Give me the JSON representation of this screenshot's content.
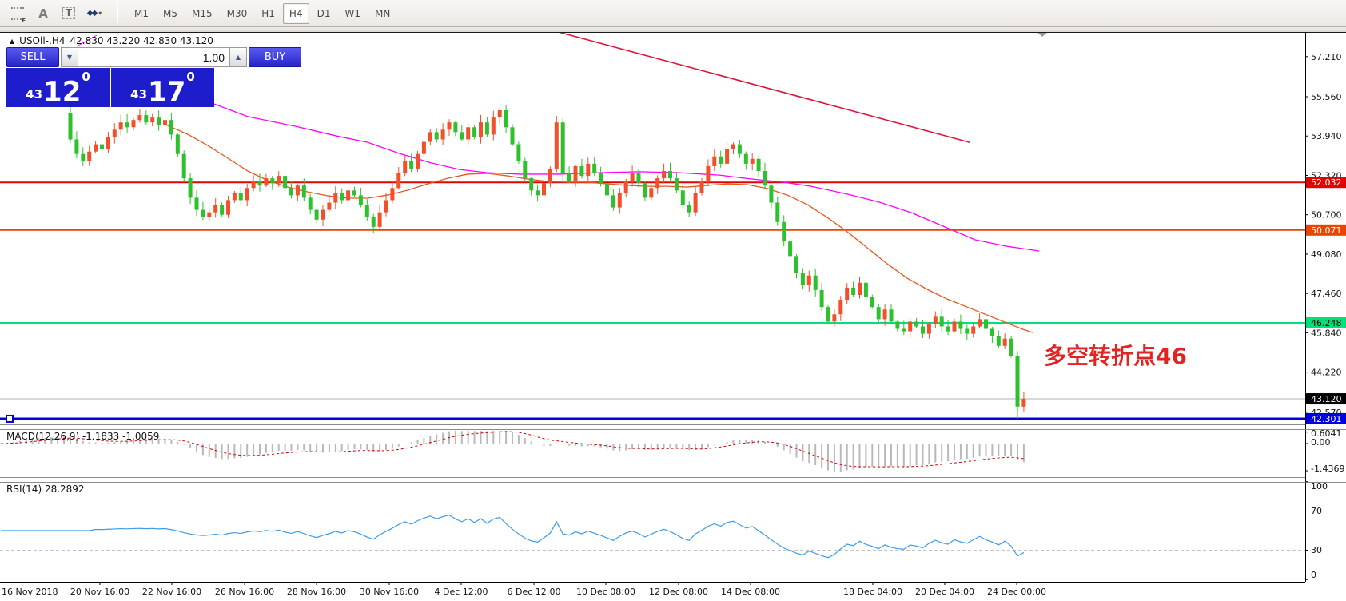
{
  "toolbar": {
    "icons": [
      {
        "name": "data-window-icon"
      },
      {
        "name": "text-cursor-icon",
        "glyph": "A"
      },
      {
        "name": "text-label-icon",
        "glyph": "T"
      },
      {
        "name": "objects-icon",
        "glyph": "◆◆"
      }
    ],
    "timeframes": [
      {
        "label": "M1",
        "active": false
      },
      {
        "label": "M5",
        "active": false
      },
      {
        "label": "M15",
        "active": false
      },
      {
        "label": "M30",
        "active": false
      },
      {
        "label": "H1",
        "active": false
      },
      {
        "label": "H4",
        "active": true
      },
      {
        "label": "D1",
        "active": false
      },
      {
        "label": "W1",
        "active": false
      },
      {
        "label": "MN",
        "active": false
      }
    ]
  },
  "symbol_line": {
    "name": "USOil-,H4",
    "ohlc": "42.830 43.220 42.830 43.120"
  },
  "trade_panel": {
    "sell_label": "SELL",
    "buy_label": "BUY",
    "volume": "1.00",
    "sell_price": {
      "big_figure": "43",
      "pips": "12",
      "sup": "0"
    },
    "buy_price": {
      "big_figure": "43",
      "pips": "17",
      "sup": "0"
    }
  },
  "annotation": {
    "text": "多空转折点46",
    "color": "#e32222"
  },
  "indicators": {
    "macd": {
      "label": "MACD(12,26,9)",
      "value_main": "-1.1833",
      "value_signal": "-1.0059",
      "axis_ticks": [
        "0.6041",
        "0.00",
        "-1.4369"
      ]
    },
    "rsi": {
      "label": "RSI(14)",
      "value": "28.2892",
      "axis_ticks": [
        "100",
        "70",
        "30",
        "0"
      ],
      "guide_levels": [
        70,
        30
      ]
    }
  },
  "price_axis": {
    "ticks": [
      "57.210",
      "55.560",
      "53.940",
      "52.320",
      "50.700",
      "49.080",
      "47.460",
      "45.840",
      "44.220",
      "42.570"
    ],
    "tick_values": [
      57.21,
      55.56,
      53.94,
      52.32,
      50.7,
      49.08,
      47.46,
      45.84,
      44.22,
      42.57
    ]
  },
  "levels": [
    {
      "label": "52.032",
      "value": 52.032,
      "color": "#e00505",
      "text": "#ffffff",
      "thickness": 2
    },
    {
      "label": "50.071",
      "value": 50.071,
      "color": "#ea4400",
      "text": "#ffffff",
      "thickness": 2
    },
    {
      "label": "46.248",
      "value": 46.248,
      "color": "#00e17c",
      "text": "#000000",
      "thickness": 2
    },
    {
      "label": "42.301",
      "value": 42.301,
      "color": "#0000dd",
      "text": "#ffffff",
      "thickness": 3
    }
  ],
  "current_price": {
    "label": "43.120",
    "value": 43.12,
    "line_color": "#b0b0b0",
    "chip_bg": "#000000",
    "chip_text": "#ffffff"
  },
  "time_axis": {
    "labels": [
      "16 Nov 2018",
      "20 Nov 16:00",
      "22 Nov 16:00",
      "26 Nov 16:00",
      "28 Nov 16:00",
      "30 Nov 16:00",
      "4 Dec 12:00",
      "6 Dec 12:00",
      "10 Dec 08:00",
      "12 Dec 08:00",
      "14 Dec 08:00",
      "18 Dec 04:00",
      "20 Dec 04:00",
      "24 Dec 00:00"
    ]
  },
  "chart_data": {
    "type": "candlestick",
    "symbol": "USOil-",
    "timeframe": "H4",
    "up_color": "#f1502b",
    "down_color": "#2ec12e",
    "visible_from_index": 11,
    "closes": [
      53.2,
      53.6,
      53.9,
      54.2,
      54.0,
      54.4,
      54.6,
      54.3,
      54.7,
      55.0,
      54.9,
      53.8,
      53.2,
      52.9,
      53.3,
      53.6,
      53.4,
      53.9,
      54.2,
      54.5,
      54.3,
      54.6,
      54.8,
      54.5,
      54.7,
      54.4,
      54.6,
      54.0,
      53.2,
      52.2,
      51.4,
      50.9,
      50.6,
      50.8,
      51.1,
      50.7,
      51.3,
      51.6,
      51.3,
      51.8,
      52.1,
      51.9,
      52.2,
      52.0,
      52.3,
      51.8,
      51.5,
      51.9,
      51.4,
      50.9,
      50.5,
      50.9,
      51.2,
      51.6,
      51.3,
      51.7,
      51.5,
      51.1,
      50.6,
      50.2,
      50.8,
      51.3,
      51.8,
      52.4,
      52.9,
      52.6,
      53.2,
      53.7,
      54.1,
      53.8,
      54.2,
      54.5,
      54.1,
      53.8,
      54.3,
      53.9,
      54.5,
      54.0,
      54.7,
      55.0,
      54.3,
      53.6,
      52.9,
      52.2,
      51.7,
      51.5,
      52.0,
      52.6,
      54.5,
      52.4,
      52.1,
      52.7,
      52.3,
      52.8,
      52.4,
      52.0,
      51.5,
      51.0,
      51.6,
      52.1,
      52.4,
      52.0,
      51.4,
      51.8,
      52.2,
      52.5,
      52.2,
      51.7,
      51.1,
      50.8,
      51.6,
      52.1,
      52.7,
      53.1,
      52.8,
      53.4,
      53.6,
      53.2,
      52.8,
      53.0,
      52.5,
      51.9,
      51.2,
      50.4,
      49.6,
      49.0,
      48.3,
      47.8,
      48.2,
      47.6,
      46.9,
      46.3,
      46.6,
      47.2,
      47.7,
      47.4,
      47.9,
      47.3,
      46.9,
      46.4,
      46.8,
      46.3,
      46.0,
      45.9,
      46.3,
      46.1,
      45.8,
      46.2,
      46.5,
      46.1,
      45.9,
      46.3,
      46.0,
      45.8,
      46.1,
      46.4,
      46.0,
      45.7,
      45.3,
      45.6,
      44.9,
      42.8,
      43.12
    ],
    "final_low": 42.3,
    "ma_fast": {
      "color": "#e8571f",
      "points": [
        [
          205,
          54.44
        ],
        [
          235,
          54.01
        ],
        [
          260,
          53.55
        ],
        [
          285,
          53.03
        ],
        [
          310,
          52.5
        ],
        [
          335,
          52.11
        ],
        [
          360,
          51.84
        ],
        [
          385,
          51.64
        ],
        [
          410,
          51.48
        ],
        [
          435,
          51.38
        ],
        [
          460,
          51.38
        ],
        [
          485,
          51.51
        ],
        [
          510,
          51.71
        ],
        [
          535,
          51.97
        ],
        [
          560,
          52.2
        ],
        [
          585,
          52.37
        ],
        [
          610,
          52.4
        ],
        [
          635,
          52.3
        ],
        [
          660,
          52.17
        ],
        [
          685,
          52.07
        ],
        [
          710,
          52.04
        ],
        [
          735,
          52.04
        ],
        [
          760,
          51.97
        ],
        [
          785,
          51.91
        ],
        [
          810,
          51.87
        ],
        [
          835,
          51.87
        ],
        [
          860,
          51.84
        ],
        [
          885,
          51.91
        ],
        [
          910,
          51.97
        ],
        [
          935,
          51.94
        ],
        [
          960,
          51.78
        ],
        [
          985,
          51.51
        ],
        [
          1010,
          51.12
        ],
        [
          1035,
          50.59
        ],
        [
          1060,
          50.0
        ],
        [
          1085,
          49.34
        ],
        [
          1110,
          48.68
        ],
        [
          1135,
          48.09
        ],
        [
          1160,
          47.63
        ],
        [
          1185,
          47.23
        ],
        [
          1210,
          46.9
        ],
        [
          1235,
          46.57
        ],
        [
          1260,
          46.24
        ],
        [
          1280,
          45.98
        ],
        [
          1292,
          45.85
        ]
      ]
    },
    "ma_slow": {
      "color": "#ff00ff",
      "points": [
        [
          268,
          55.26
        ],
        [
          310,
          54.74
        ],
        [
          370,
          54.34
        ],
        [
          420,
          53.95
        ],
        [
          460,
          53.68
        ],
        [
          500,
          53.22
        ],
        [
          540,
          52.83
        ],
        [
          575,
          52.56
        ],
        [
          610,
          52.43
        ],
        [
          650,
          52.37
        ],
        [
          700,
          52.37
        ],
        [
          750,
          52.43
        ],
        [
          800,
          52.47
        ],
        [
          850,
          52.43
        ],
        [
          900,
          52.33
        ],
        [
          940,
          52.17
        ],
        [
          980,
          52.04
        ],
        [
          1015,
          51.87
        ],
        [
          1060,
          51.55
        ],
        [
          1100,
          51.22
        ],
        [
          1140,
          50.79
        ],
        [
          1180,
          50.23
        ],
        [
          1220,
          49.67
        ],
        [
          1260,
          49.4
        ],
        [
          1300,
          49.21
        ]
      ]
    },
    "trendline": {
      "color": "#dc143c",
      "from": [
        680,
        58.39
      ],
      "to": [
        1213,
        53.68
      ]
    },
    "macd_hist_color": "#b9b9b9",
    "macd_signal_color": "#d00000",
    "rsi_color": "#3d9be9"
  }
}
